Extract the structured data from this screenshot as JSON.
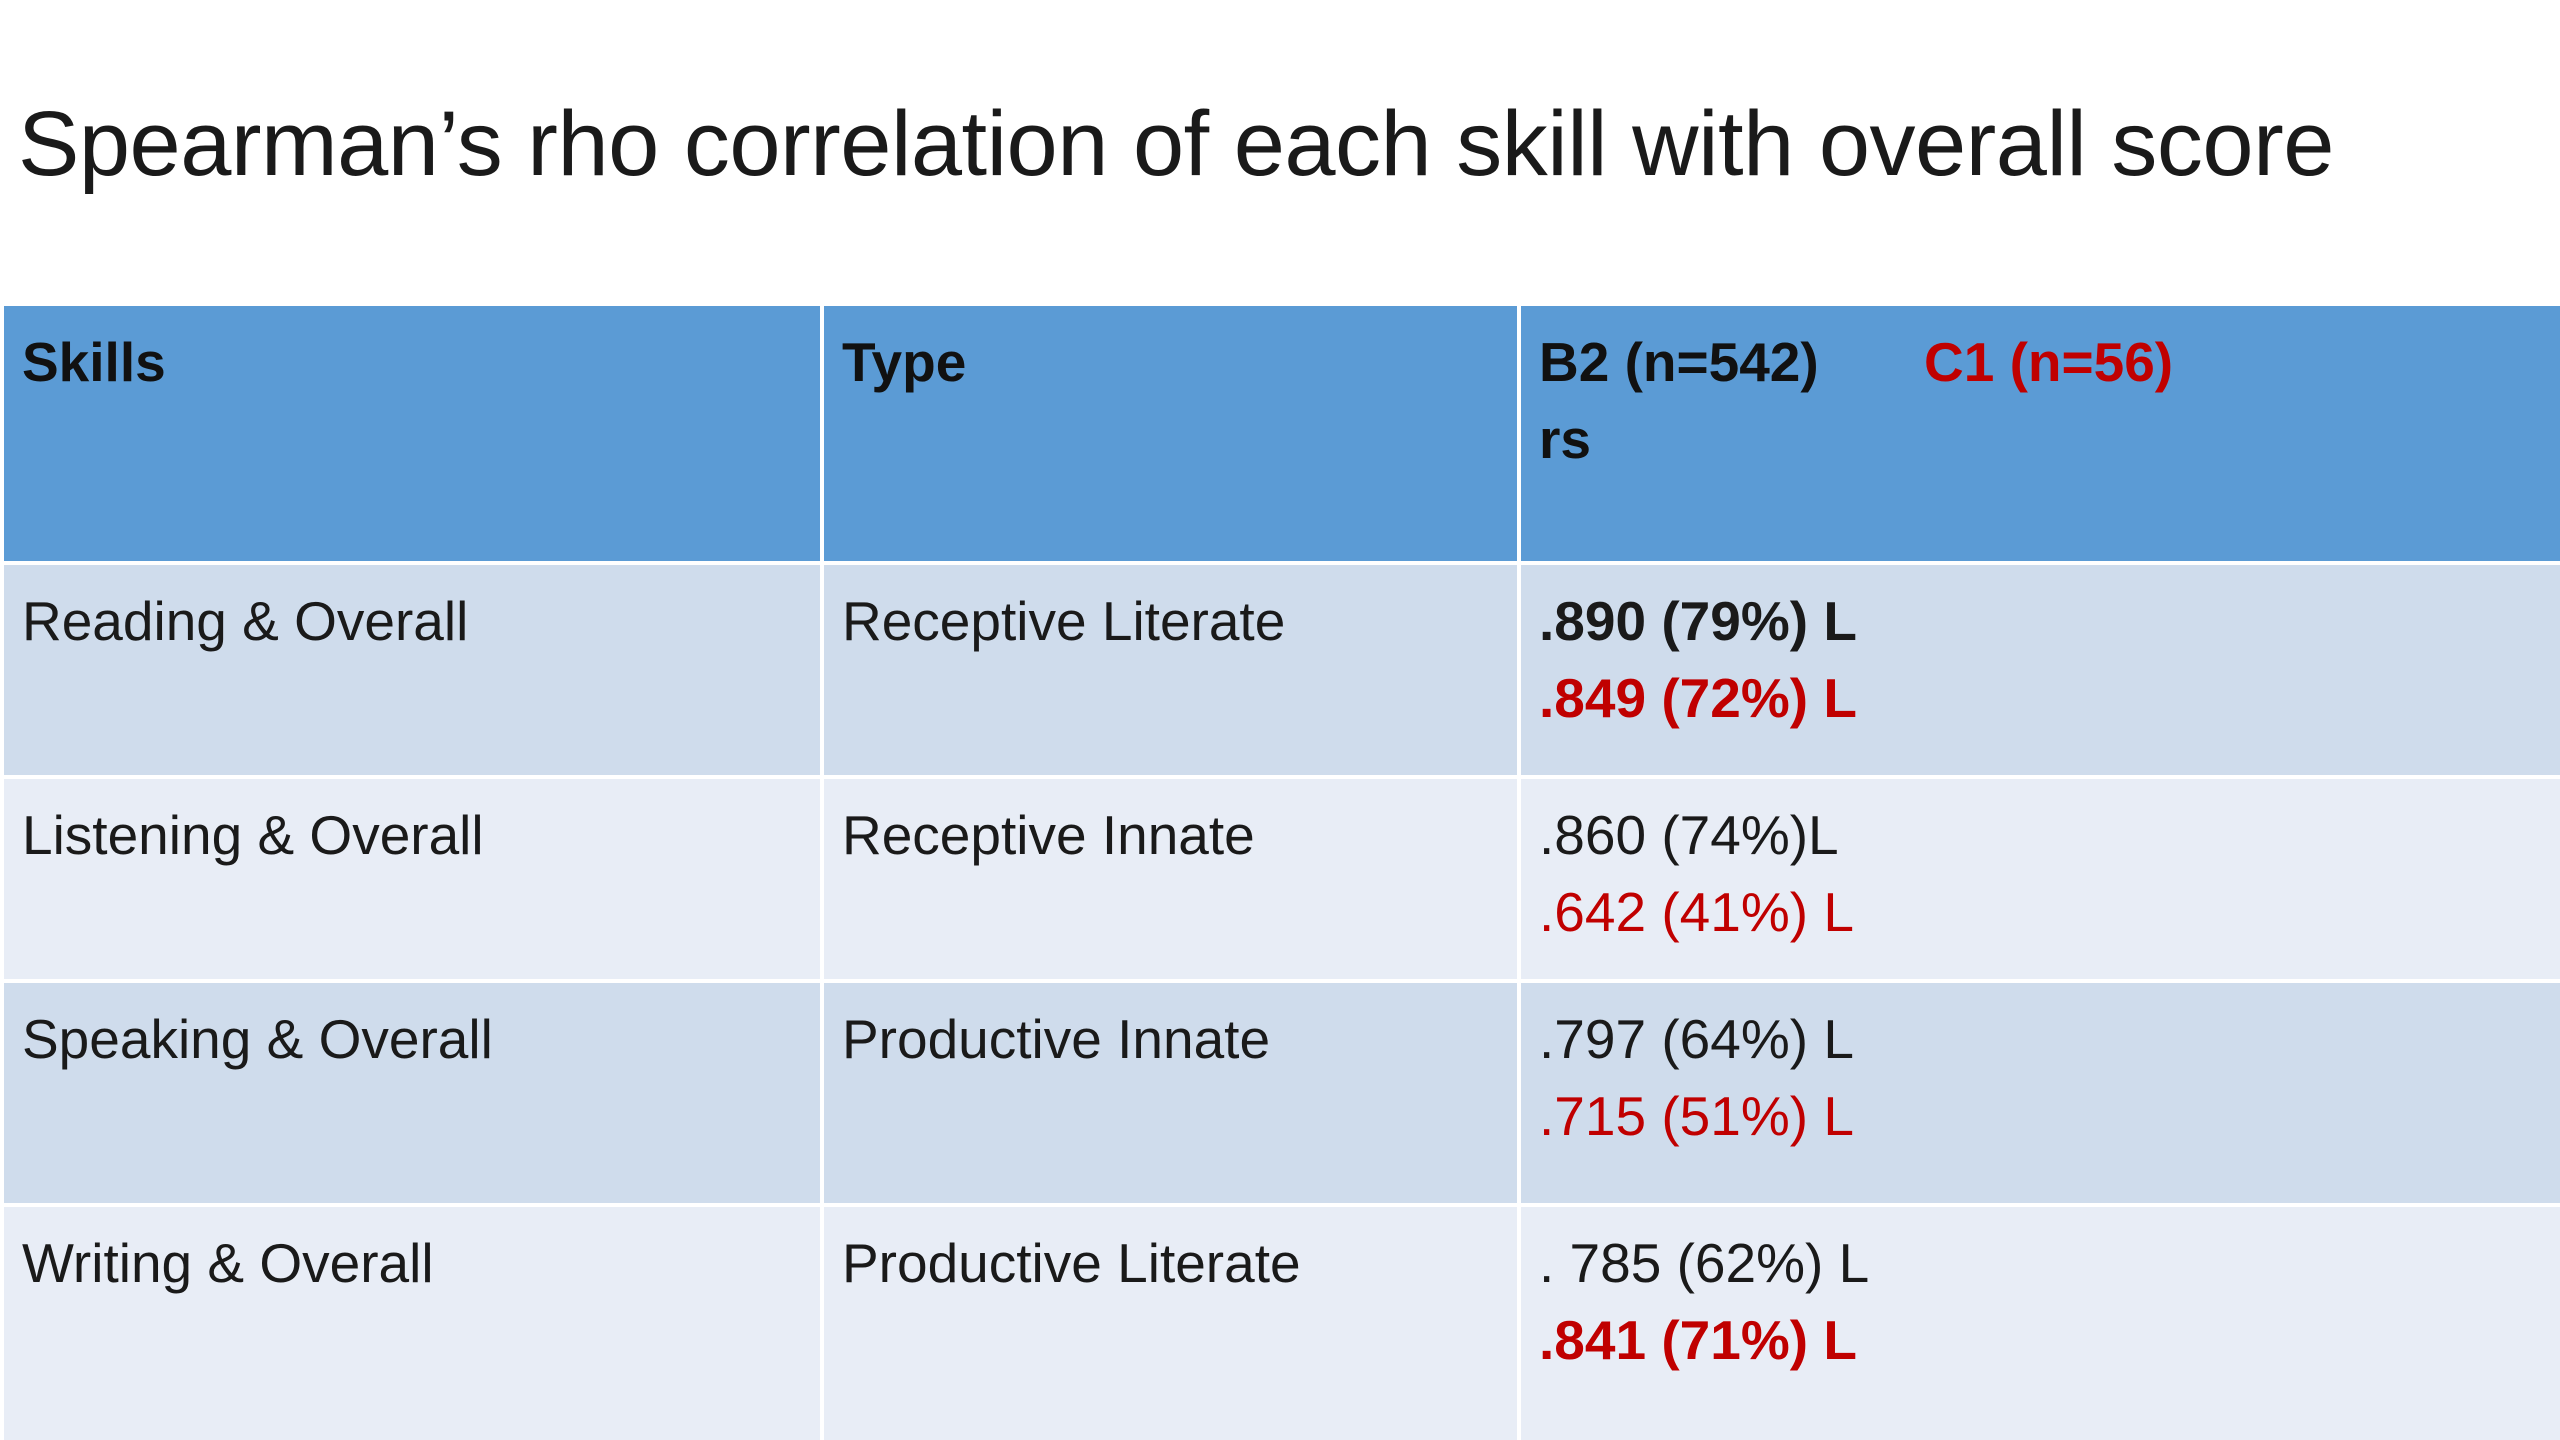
{
  "title": "Spearman’s rho correlation of each skill with overall score",
  "table": {
    "headers": {
      "skills": "Skills",
      "type": "Type",
      "b2": "B2 (n=542)",
      "c1": "C1 (n=56)",
      "rs": "rs"
    },
    "rows": [
      {
        "skill": "Reading & Overall",
        "type": "Receptive Literate",
        "b2": ".890 (79%) L",
        "c1": ".849 (72%) L",
        "b2_bold": true,
        "c1_bold": true
      },
      {
        "skill": "Listening & Overall",
        "type": "Receptive Innate",
        "b2": ".860 (74%)L",
        "c1": ".642 (41%) L",
        "b2_bold": false,
        "c1_bold": false
      },
      {
        "skill": "Speaking & Overall",
        "type": "Productive Innate",
        "b2": ".797 (64%) L",
        "c1": ".715 (51%) L",
        "b2_bold": false,
        "c1_bold": false
      },
      {
        "skill": "Writing & Overall",
        "type": "Productive Literate",
        "b2": ". 785 (62%) L",
        "c1": ".841 (71%) L",
        "b2_bold": false,
        "c1_bold": true
      }
    ]
  },
  "colors": {
    "header_bg": "#5b9bd5",
    "row_dark": "#cfdcec",
    "row_light": "#e8edf6",
    "c1_text": "#c00000"
  }
}
